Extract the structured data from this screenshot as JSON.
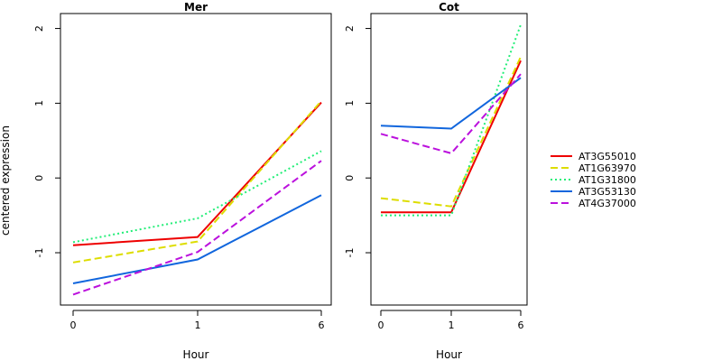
{
  "chart_data": {
    "type": "line",
    "ylabel": "centered expression",
    "legend": {
      "placement": "right",
      "entries": [
        {
          "name": "AT3G55010",
          "color": "#ee0000",
          "dash": "solid"
        },
        {
          "name": "AT1G63970",
          "color": "#dddd00",
          "dash": "dashed"
        },
        {
          "name": "AT1G31800",
          "color": "#22ee77",
          "dash": "dotted"
        },
        {
          "name": "AT3G53130",
          "color": "#1166dd",
          "dash": "solid"
        },
        {
          "name": "AT4G37000",
          "color": "#bb11dd",
          "dash": "dashed"
        }
      ]
    },
    "panels": [
      {
        "title": "Mer",
        "xlabel": "Hour",
        "categories": [
          "0",
          "1",
          "6"
        ],
        "ylim": [
          -1.7,
          2.2
        ],
        "yticks": [
          "-1",
          "0",
          "1",
          "2"
        ],
        "series": [
          {
            "name": "AT3G55010",
            "values": [
              -0.9,
              -0.79,
              1.01
            ]
          },
          {
            "name": "AT1G63970",
            "values": [
              -1.13,
              -0.85,
              1.03
            ]
          },
          {
            "name": "AT1G31800",
            "values": [
              -0.86,
              -0.54,
              0.36
            ]
          },
          {
            "name": "AT3G53130",
            "values": [
              -1.41,
              -1.09,
              -0.23
            ]
          },
          {
            "name": "AT4G37000",
            "values": [
              -1.56,
              -0.99,
              0.23
            ]
          }
        ]
      },
      {
        "title": "Cot",
        "xlabel": "Hour",
        "categories": [
          "0",
          "1",
          "6"
        ],
        "ylim": [
          -1.7,
          2.2
        ],
        "yticks": [
          "-1",
          "0",
          "1",
          "2"
        ],
        "series": [
          {
            "name": "AT3G55010",
            "values": [
              -0.46,
              -0.46,
              1.57
            ]
          },
          {
            "name": "AT1G63970",
            "values": [
              -0.27,
              -0.38,
              1.62
            ]
          },
          {
            "name": "AT1G31800",
            "values": [
              -0.5,
              -0.5,
              2.05
            ]
          },
          {
            "name": "AT3G53130",
            "values": [
              0.7,
              0.66,
              1.34
            ]
          },
          {
            "name": "AT4G37000",
            "values": [
              0.59,
              0.33,
              1.39
            ]
          }
        ]
      }
    ]
  }
}
